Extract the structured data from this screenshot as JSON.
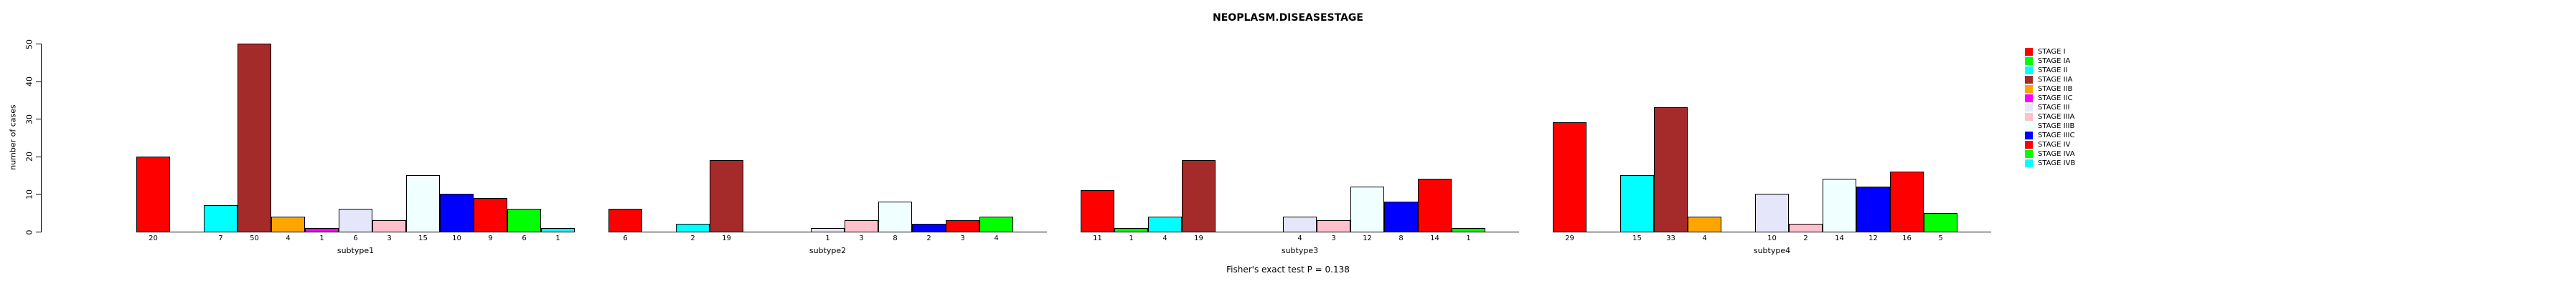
{
  "chart_data": {
    "type": "bar",
    "title": "NEOPLASM.DISEASESTAGE",
    "ylabel": "number of cases",
    "xlabel": "",
    "ylim": [
      0,
      50
    ],
    "yticks": [
      0,
      10,
      20,
      30,
      40,
      50
    ],
    "grid": false,
    "legend_position": "right",
    "annotation": "Fisher's exact test P = 0.138",
    "categories": [
      "subtype1",
      "subtype2",
      "subtype3",
      "subtype4"
    ],
    "bar_label_rule": "zero values have no bar and no label",
    "series": [
      {
        "name": "STAGE I",
        "color": "#FF0000",
        "values": [
          20,
          6,
          11,
          29
        ]
      },
      {
        "name": "STAGE IA",
        "color": "#00FF00",
        "values": [
          0,
          0,
          1,
          0
        ]
      },
      {
        "name": "STAGE II",
        "color": "#00FFFF",
        "values": [
          7,
          2,
          4,
          15
        ]
      },
      {
        "name": "STAGE IIA",
        "color": "#A52A2A",
        "values": [
          50,
          19,
          19,
          33
        ]
      },
      {
        "name": "STAGE IIB",
        "color": "#FFA500",
        "values": [
          4,
          0,
          0,
          4
        ]
      },
      {
        "name": "STAGE IIC",
        "color": "#FF00FF",
        "values": [
          1,
          0,
          0,
          0
        ]
      },
      {
        "name": "STAGE III",
        "color": "#E6E6FA",
        "values": [
          6,
          1,
          4,
          10
        ]
      },
      {
        "name": "STAGE IIIA",
        "color": "#FFC0CB",
        "values": [
          3,
          3,
          3,
          2
        ]
      },
      {
        "name": "STAGE IIIB",
        "color": "#F0FFFF",
        "values": [
          15,
          8,
          12,
          14
        ]
      },
      {
        "name": "STAGE IIIC",
        "color": "#0000FF",
        "values": [
          10,
          2,
          8,
          12
        ]
      },
      {
        "name": "STAGE IV",
        "color": "#FF0000",
        "values": [
          9,
          3,
          14,
          16
        ]
      },
      {
        "name": "STAGE IVA",
        "color": "#00FF00",
        "values": [
          6,
          4,
          1,
          5
        ]
      },
      {
        "name": "STAGE IVB",
        "color": "#00FFFF",
        "values": [
          1,
          0,
          0,
          0
        ]
      }
    ]
  }
}
